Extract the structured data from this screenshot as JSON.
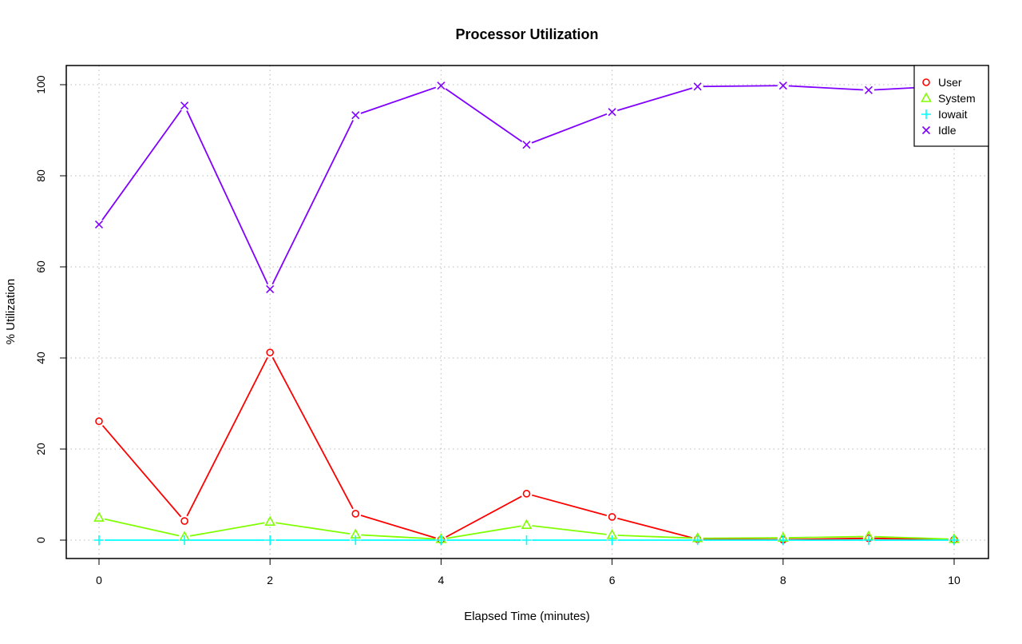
{
  "chart_data": {
    "type": "line",
    "title": "Processor Utilization",
    "xlabel": "Elapsed Time (minutes)",
    "ylabel": "% Utilization",
    "xlim": [
      0,
      10
    ],
    "ylim": [
      0,
      100
    ],
    "xticks": [
      0,
      2,
      4,
      6,
      8,
      10
    ],
    "yticks": [
      0,
      20,
      40,
      60,
      80,
      100
    ],
    "grid": true,
    "legend_position": "top-right",
    "x": [
      0,
      1,
      2,
      3,
      4,
      5,
      6,
      7,
      8,
      9,
      10
    ],
    "series": [
      {
        "name": "User",
        "color": "#ff0000",
        "marker": "circle",
        "values": [
          26.1,
          4.2,
          41.2,
          5.8,
          0.1,
          10.2,
          5.1,
          0.2,
          0.1,
          0.4,
          0.1
        ]
      },
      {
        "name": "System",
        "color": "#80ff00",
        "marker": "triangle",
        "values": [
          4.9,
          0.7,
          4.0,
          1.2,
          0.2,
          3.3,
          1.1,
          0.4,
          0.5,
          0.8,
          0.2
        ]
      },
      {
        "name": "Iowait",
        "color": "#00ffff",
        "marker": "plus",
        "values": [
          0,
          0,
          0,
          0,
          0,
          0,
          0,
          0,
          0,
          0,
          0
        ]
      },
      {
        "name": "Idle",
        "color": "#8000ff",
        "marker": "cross",
        "values": [
          69.3,
          95.4,
          55.1,
          93.3,
          99.8,
          86.8,
          94.0,
          99.6,
          99.8,
          98.8,
          99.8
        ]
      }
    ]
  }
}
